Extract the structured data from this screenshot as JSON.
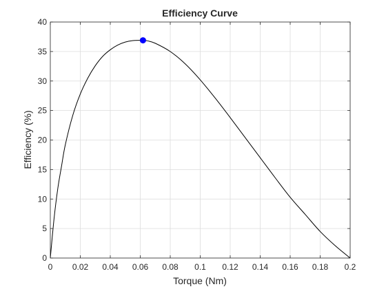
{
  "chart_data": {
    "type": "line",
    "title": "Efficiency Curve",
    "xlabel": "Torque (Nm)",
    "ylabel": "Efficiency (%)",
    "xlim": [
      0,
      0.2
    ],
    "ylim": [
      0,
      40
    ],
    "xticks": [
      0,
      0.02,
      0.04,
      0.06,
      0.08,
      0.1,
      0.12,
      0.14,
      0.16,
      0.18,
      0.2
    ],
    "xtick_labels": [
      "0",
      "0.02",
      "0.04",
      "0.06",
      "0.08",
      "0.1",
      "0.12",
      "0.14",
      "0.16",
      "0.18",
      "0.2"
    ],
    "yticks": [
      0,
      5,
      10,
      15,
      20,
      25,
      30,
      35,
      40
    ],
    "ytick_labels": [
      "0",
      "5",
      "10",
      "15",
      "20",
      "25",
      "30",
      "35",
      "40"
    ],
    "grid": true,
    "series": [
      {
        "color": "#000000",
        "x": [
          0,
          0.0025,
          0.005,
          0.0075,
          0.01,
          0.015,
          0.02,
          0.025,
          0.03,
          0.035,
          0.04,
          0.045,
          0.05,
          0.055,
          0.06,
          0.0618,
          0.065,
          0.07,
          0.08,
          0.09,
          0.1,
          0.11,
          0.12,
          0.13,
          0.14,
          0.15,
          0.16,
          0.17,
          0.18,
          0.19,
          0.2
        ],
        "y": [
          0,
          6.7,
          11.8,
          15.6,
          19.2,
          24.2,
          27.8,
          30.5,
          32.6,
          34.2,
          35.3,
          36.1,
          36.6,
          36.85,
          36.9,
          36.9,
          36.8,
          36.4,
          35.0,
          32.9,
          30.2,
          27.1,
          23.8,
          20.4,
          17.0,
          13.6,
          10.3,
          7.4,
          4.5,
          2.1,
          0
        ]
      }
    ],
    "markers": [
      {
        "x": 0.0618,
        "y": 36.9,
        "color": "#0000ff"
      }
    ]
  }
}
